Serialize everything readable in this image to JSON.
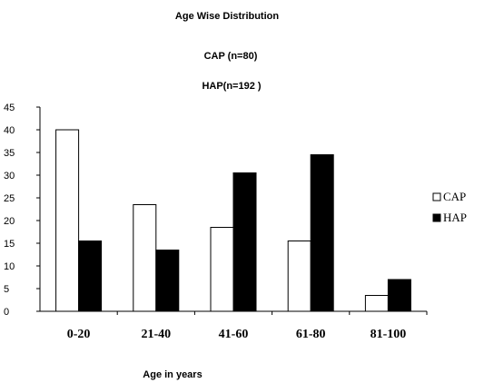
{
  "chart_data": {
    "type": "bar",
    "title": "Age Wise Distribution",
    "subtitles": [
      "CAP (n=80)",
      "HAP(n=192 )"
    ],
    "xlabel": "Age in years",
    "ylabel": "",
    "categories": [
      "0-20",
      "21-40",
      "41-60",
      "61-80",
      "81-100"
    ],
    "series": [
      {
        "name": "CAP",
        "values": [
          40,
          23.5,
          18.5,
          15.5,
          3.5
        ],
        "color": "#ffffff"
      },
      {
        "name": "HAP",
        "values": [
          15.5,
          13.5,
          30.5,
          34.5,
          7
        ],
        "color": "#000000"
      }
    ],
    "ylim": [
      0,
      45
    ],
    "yticks": [
      0,
      5,
      10,
      15,
      20,
      25,
      30,
      35,
      40,
      45
    ],
    "ytick_labels": [
      "0",
      "5",
      "10",
      "15",
      "20",
      "25",
      "30",
      "35",
      "40",
      "45"
    ],
    "grid": false,
    "legend": {
      "position": "right",
      "labels": [
        "CAP",
        "HAP"
      ]
    }
  }
}
